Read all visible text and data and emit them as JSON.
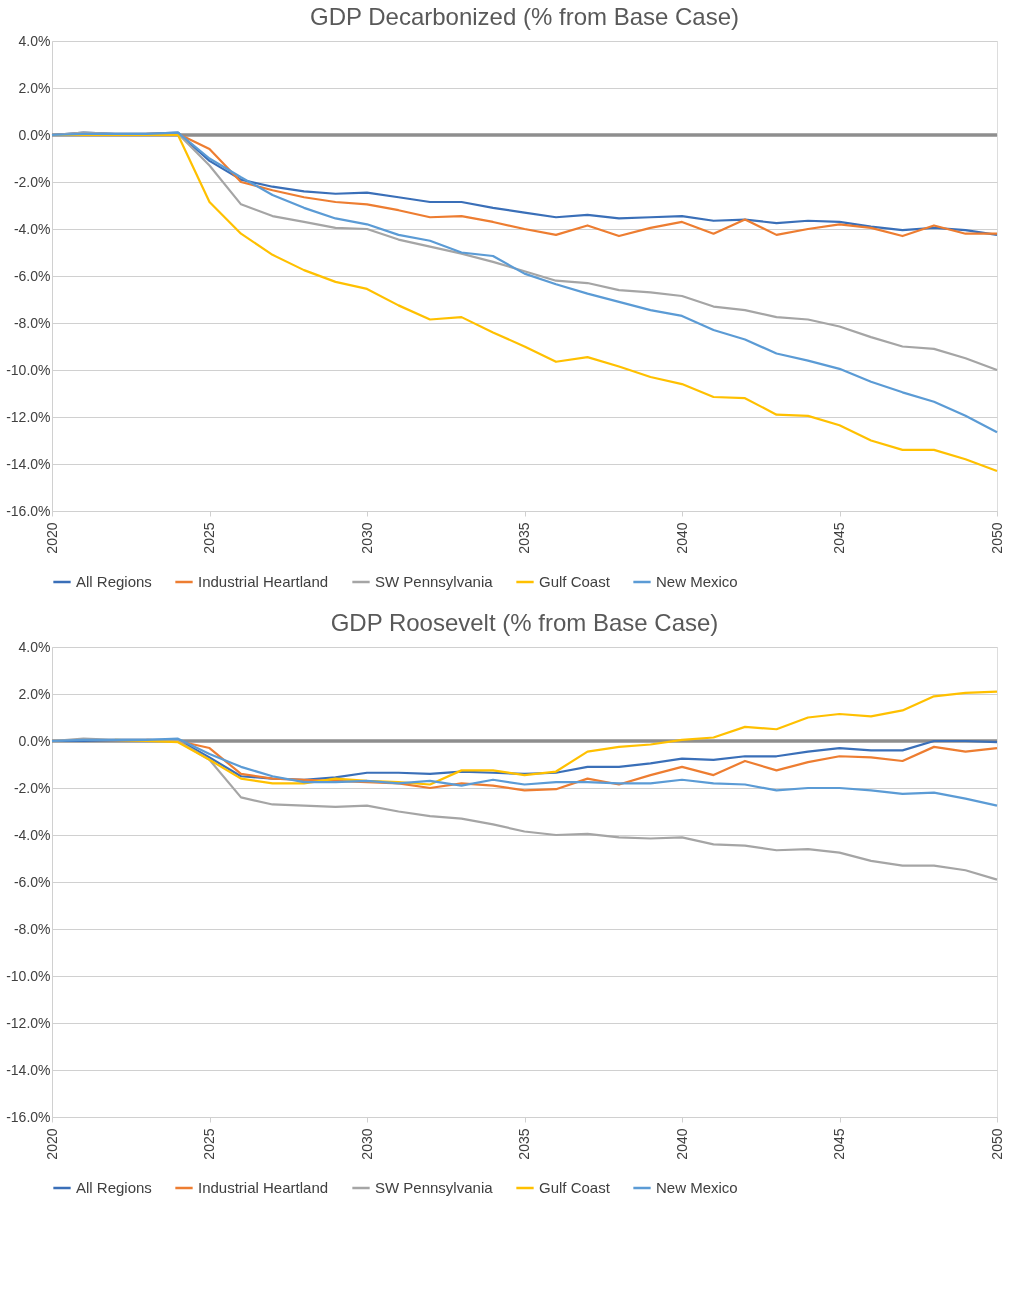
{
  "chart_data": [
    {
      "type": "line",
      "title": "GDP Decarbonized (% from Base Case)",
      "x": [
        2020,
        2021,
        2022,
        2023,
        2024,
        2025,
        2026,
        2027,
        2028,
        2029,
        2030,
        2031,
        2032,
        2033,
        2034,
        2035,
        2036,
        2037,
        2038,
        2039,
        2040,
        2041,
        2042,
        2043,
        2044,
        2045,
        2046,
        2047,
        2048,
        2049,
        2050
      ],
      "series": [
        {
          "name": "All Regions",
          "color": "#3a6fb8",
          "values": [
            0,
            0.1,
            0.05,
            0.05,
            0.1,
            -1.1,
            -1.9,
            -2.2,
            -2.4,
            -2.5,
            -2.45,
            -2.65,
            -2.85,
            -2.85,
            -3.1,
            -3.3,
            -3.5,
            -3.4,
            -3.55,
            -3.5,
            -3.45,
            -3.65,
            -3.6,
            -3.75,
            -3.65,
            -3.7,
            -3.9,
            -4.05,
            -3.95,
            -4.05,
            -4.25
          ]
        },
        {
          "name": "Industrial Heartland",
          "color": "#ed7d31",
          "values": [
            null,
            null,
            null,
            0.05,
            0.05,
            -0.6,
            -2.0,
            -2.35,
            -2.65,
            -2.85,
            -2.95,
            -3.2,
            -3.5,
            -3.45,
            -3.7,
            -4.0,
            -4.25,
            -3.85,
            -4.3,
            -3.95,
            -3.7,
            -4.2,
            -3.6,
            -4.25,
            -4.0,
            -3.8,
            -3.95,
            -4.3,
            -3.85,
            -4.2,
            -4.2
          ]
        },
        {
          "name": "SW Pennsylvania",
          "color": "#a5a5a5",
          "values": [
            0,
            0.1,
            0.05,
            0.05,
            0.05,
            -1.3,
            -2.95,
            -3.45,
            -3.7,
            -3.95,
            -4.0,
            -4.45,
            -4.75,
            -5.05,
            -5.4,
            -5.8,
            -6.2,
            -6.3,
            -6.6,
            -6.7,
            -6.85,
            -7.3,
            -7.45,
            -7.75,
            -7.85,
            -8.15,
            -8.6,
            -9.0,
            -9.1,
            -9.5,
            -10.0
          ]
        },
        {
          "name": "Gulf Coast",
          "color": "#ffc000",
          "values": [
            0,
            0,
            0,
            0,
            0,
            -2.85,
            -4.2,
            -5.1,
            -5.75,
            -6.25,
            -6.55,
            -7.25,
            -7.85,
            -7.75,
            -8.4,
            -9.0,
            -9.65,
            -9.45,
            -9.85,
            -10.3,
            -10.6,
            -11.15,
            -11.2,
            -11.9,
            -11.95,
            -12.35,
            -13.0,
            -13.4,
            -13.4,
            -13.8,
            -14.3
          ]
        },
        {
          "name": "New Mexico",
          "color": "#5b9bd5",
          "values": [
            0,
            0.05,
            0.05,
            0.05,
            0.1,
            -1.0,
            -1.8,
            -2.55,
            -3.1,
            -3.55,
            -3.8,
            -4.25,
            -4.5,
            -5.0,
            -5.15,
            -5.9,
            -6.35,
            -6.75,
            -7.1,
            -7.45,
            -7.7,
            -8.3,
            -8.7,
            -9.3,
            -9.6,
            -9.95,
            -10.5,
            -10.95,
            -11.35,
            -11.95,
            -12.65
          ]
        }
      ],
      "xlim": [
        2020,
        2050
      ],
      "xticks": [
        2020,
        2025,
        2030,
        2035,
        2040,
        2045,
        2050
      ],
      "ylim": [
        -16,
        4
      ],
      "yticks": [
        {
          "value": 4,
          "label": "4.0%"
        },
        {
          "value": 2,
          "label": "2.0%"
        },
        {
          "value": 0,
          "label": "0.0%"
        },
        {
          "value": -2,
          "label": "-2.0%"
        },
        {
          "value": -4,
          "label": "-4.0%"
        },
        {
          "value": -6,
          "label": "-6.0%"
        },
        {
          "value": -8,
          "label": "-8.0%"
        },
        {
          "value": -10,
          "label": "-10.0%"
        },
        {
          "value": -12,
          "label": "-12.0%"
        },
        {
          "value": -14,
          "label": "-14.0%"
        },
        {
          "value": -16,
          "label": "-16.0%"
        }
      ],
      "ref_lines": [
        {
          "axis": "y",
          "value": 0,
          "color": "#8e8e8e"
        }
      ],
      "grid": "y",
      "legend": "bottom",
      "marker": "none",
      "line_style": "solid"
    },
    {
      "type": "line",
      "title": "GDP Roosevelt (% from Base Case)",
      "x": [
        2020,
        2021,
        2022,
        2023,
        2024,
        2025,
        2026,
        2027,
        2028,
        2029,
        2030,
        2031,
        2032,
        2033,
        2034,
        2035,
        2036,
        2037,
        2038,
        2039,
        2040,
        2041,
        2042,
        2043,
        2044,
        2045,
        2046,
        2047,
        2048,
        2049,
        2050
      ],
      "series": [
        {
          "name": "All Regions",
          "color": "#3a6fb8",
          "values": [
            0,
            0,
            0.05,
            0.05,
            0.05,
            -0.7,
            -1.5,
            -1.6,
            -1.65,
            -1.55,
            -1.35,
            -1.35,
            -1.4,
            -1.3,
            -1.35,
            -1.4,
            -1.35,
            -1.1,
            -1.1,
            -0.95,
            -0.75,
            -0.8,
            -0.65,
            -0.65,
            -0.45,
            -0.3,
            -0.4,
            -0.4,
            0,
            0,
            -0.05
          ]
        },
        {
          "name": "Industrial Heartland",
          "color": "#ed7d31",
          "values": [
            null,
            null,
            null,
            0.05,
            0,
            -0.3,
            -1.4,
            -1.6,
            -1.65,
            -1.7,
            -1.75,
            -1.8,
            -2.0,
            -1.8,
            -1.9,
            -2.1,
            -2.05,
            -1.6,
            -1.85,
            -1.45,
            -1.1,
            -1.45,
            -0.85,
            -1.25,
            -0.9,
            -0.65,
            -0.7,
            -0.85,
            -0.25,
            -0.45,
            -0.3
          ]
        },
        {
          "name": "SW Pennsylvania",
          "color": "#a5a5a5",
          "values": [
            0,
            0.1,
            0.05,
            0.05,
            0,
            -0.8,
            -2.4,
            -2.7,
            -2.75,
            -2.8,
            -2.75,
            -3.0,
            -3.2,
            -3.3,
            -3.55,
            -3.85,
            -4.0,
            -3.95,
            -4.1,
            -4.15,
            -4.1,
            -4.4,
            -4.45,
            -4.65,
            -4.6,
            -4.75,
            -5.1,
            -5.3,
            -5.3,
            -5.5,
            -5.9
          ]
        },
        {
          "name": "Gulf Coast",
          "color": "#ffc000",
          "values": [
            null,
            null,
            0.05,
            0,
            -0.05,
            -0.8,
            -1.6,
            -1.8,
            -1.8,
            -1.6,
            -1.7,
            -1.75,
            -1.85,
            -1.25,
            -1.25,
            -1.45,
            -1.3,
            -0.45,
            -0.25,
            -0.15,
            0.05,
            0.15,
            0.6,
            0.5,
            1.0,
            1.15,
            1.05,
            1.3,
            1.9,
            2.05,
            2.1
          ]
        },
        {
          "name": "New Mexico",
          "color": "#5b9bd5",
          "values": [
            0,
            0.05,
            0.05,
            0.05,
            0.1,
            -0.55,
            -1.1,
            -1.5,
            -1.75,
            -1.75,
            -1.7,
            -1.8,
            -1.7,
            -1.9,
            -1.65,
            -1.85,
            -1.75,
            -1.75,
            -1.8,
            -1.8,
            -1.65,
            -1.8,
            -1.85,
            -2.1,
            -2.0,
            -2.0,
            -2.1,
            -2.25,
            -2.2,
            -2.45,
            -2.75
          ]
        }
      ],
      "xlim": [
        2020,
        2050
      ],
      "xticks": [
        2020,
        2025,
        2030,
        2035,
        2040,
        2045,
        2050
      ],
      "ylim": [
        -16,
        4
      ],
      "yticks": [
        {
          "value": 4,
          "label": "4.0%"
        },
        {
          "value": 2,
          "label": "2.0%"
        },
        {
          "value": 0,
          "label": "0.0%"
        },
        {
          "value": -2,
          "label": "-2.0%"
        },
        {
          "value": -4,
          "label": "-4.0%"
        },
        {
          "value": -6,
          "label": "-6.0%"
        },
        {
          "value": -8,
          "label": "-8.0%"
        },
        {
          "value": -10,
          "label": "-10.0%"
        },
        {
          "value": -12,
          "label": "-12.0%"
        },
        {
          "value": -14,
          "label": "-14.0%"
        },
        {
          "value": -16,
          "label": "-16.0%"
        }
      ],
      "ref_lines": [
        {
          "axis": "y",
          "value": 0,
          "color": "#8e8e8e"
        }
      ],
      "grid": "y",
      "legend": "bottom",
      "marker": "none",
      "line_style": "solid"
    }
  ]
}
